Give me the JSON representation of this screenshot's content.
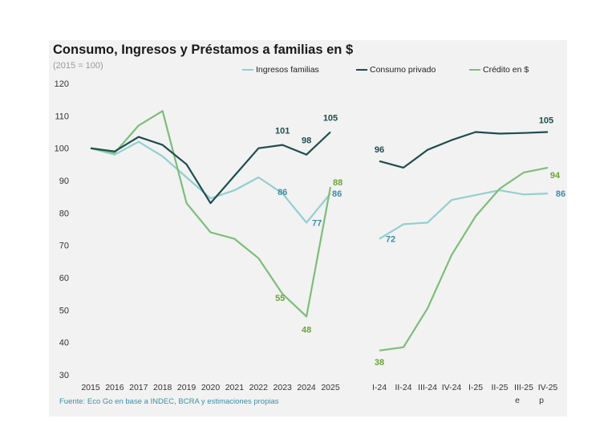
{
  "chart_data": {
    "type": "line",
    "title": "Consumo, Ingresos y Préstamos a familias en $",
    "subtitle": "(2015 = 100)",
    "source": "Fuente: Eco Go en base a INDEC, BCRA y estimaciones propias",
    "ylim": [
      30,
      120
    ],
    "yticks": [
      30,
      40,
      50,
      60,
      70,
      80,
      90,
      100,
      110,
      120
    ],
    "grid": false,
    "legend_position": "top",
    "annual": {
      "categories": [
        "2015",
        "2016",
        "2017",
        "2018",
        "2019",
        "2020",
        "2021",
        "2022",
        "2023",
        "2024",
        "2025"
      ],
      "series": [
        {
          "name": "Ingresos familias",
          "color": "#93cfcf",
          "values": [
            100,
            98,
            102,
            97.5,
            91,
            84.5,
            87,
            91,
            86,
            77,
            86
          ]
        },
        {
          "name": "Consumo privado",
          "color": "#1e4d4f",
          "values": [
            100,
            99,
            103.5,
            101,
            95,
            83,
            91.5,
            100,
            101,
            98,
            105
          ]
        },
        {
          "name": "Crédito en $",
          "color": "#7dbe78",
          "values": [
            100,
            98.5,
            107,
            111.5,
            83,
            74,
            72,
            66,
            55,
            48,
            88
          ]
        }
      ]
    },
    "quarterly": {
      "categories": [
        "I-24",
        "II-24",
        "III-24",
        "IV-24",
        "I-25",
        "II-25",
        "III-25",
        "IV-25"
      ],
      "category_notes": [
        "",
        "",
        "",
        "",
        "",
        "",
        "e",
        "p"
      ],
      "series": [
        {
          "name": "Ingresos familias",
          "color": "#93cfcf",
          "values": [
            72,
            76.5,
            77,
            84,
            85.5,
            87,
            85.7,
            86
          ]
        },
        {
          "name": "Consumo privado",
          "color": "#1e4d4f",
          "values": [
            96,
            94,
            99.5,
            102.5,
            105,
            104.5,
            104.7,
            105
          ]
        },
        {
          "name": "Crédito en $",
          "color": "#7dbe78",
          "values": [
            37.5,
            38.5,
            50.5,
            67,
            79,
            87.5,
            92.5,
            94
          ]
        }
      ]
    },
    "annotations": [
      {
        "series": "Consumo privado",
        "panel": "annual",
        "category": "2023",
        "text": "101"
      },
      {
        "series": "Consumo privado",
        "panel": "annual",
        "category": "2024",
        "text": "98"
      },
      {
        "series": "Consumo privado",
        "panel": "annual",
        "category": "2025",
        "text": "105"
      },
      {
        "series": "Ingresos familias",
        "panel": "annual",
        "category": "2023",
        "text": "86"
      },
      {
        "series": "Ingresos familias",
        "panel": "annual",
        "category": "2024",
        "text": "77"
      },
      {
        "series": "Ingresos familias",
        "panel": "annual",
        "category": "2025",
        "text": "86"
      },
      {
        "series": "Crédito en $",
        "panel": "annual",
        "category": "2023",
        "text": "55"
      },
      {
        "series": "Crédito en $",
        "panel": "annual",
        "category": "2024",
        "text": "48"
      },
      {
        "series": "Crédito en $",
        "panel": "annual",
        "category": "2025",
        "text": "88"
      },
      {
        "series": "Consumo privado",
        "panel": "quarterly",
        "category": "I-24",
        "text": "96"
      },
      {
        "series": "Consumo privado",
        "panel": "quarterly",
        "category": "IV-25",
        "text": "105"
      },
      {
        "series": "Ingresos familias",
        "panel": "quarterly",
        "category": "I-24",
        "text": "72"
      },
      {
        "series": "Ingresos familias",
        "panel": "quarterly",
        "category": "IV-25",
        "text": "86"
      },
      {
        "series": "Crédito en $",
        "panel": "quarterly",
        "category": "I-24",
        "text": "38"
      },
      {
        "series": "Crédito en $",
        "panel": "quarterly",
        "category": "IV-25",
        "text": "94"
      }
    ]
  }
}
